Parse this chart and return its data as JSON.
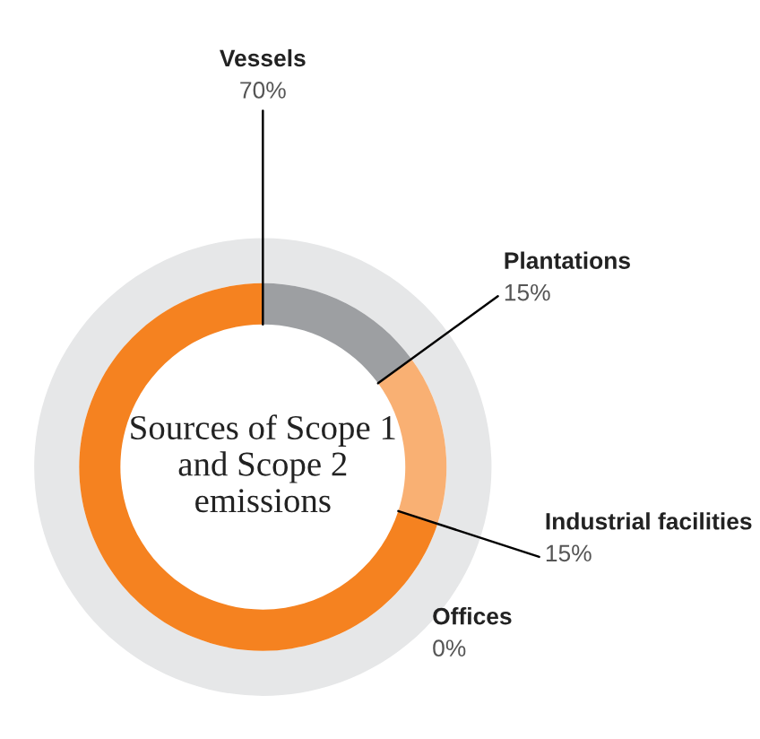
{
  "chart_data": {
    "type": "donut",
    "title": "Sources of Scope 1 and Scope 2 emissions",
    "categories": [
      "Plantations",
      "Industrial facilities",
      "Offices",
      "Vessels"
    ],
    "values": [
      15,
      15,
      0,
      70
    ],
    "colors": [
      "#9d9fa2",
      "#f9b073",
      "#f58220",
      "#f58220"
    ],
    "value_labels": [
      "15%",
      "15%",
      "0%",
      "70%"
    ]
  }
}
